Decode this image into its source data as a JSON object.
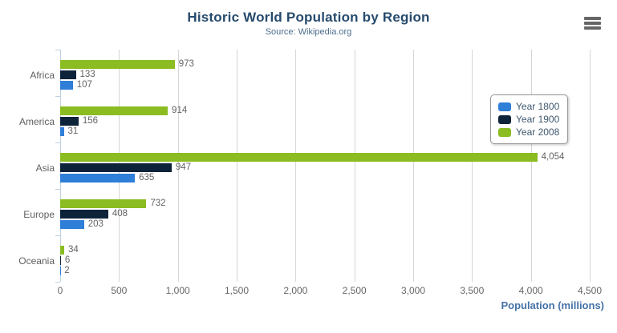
{
  "header": {
    "title": "Historic World Population by Region",
    "subtitle": "Source: Wikipedia.org"
  },
  "context_menu_icon": "hamburger-menu-icon",
  "colors": {
    "title": "#274b6d",
    "subtitle": "#4d6d8c",
    "axis_title": "#4572a7",
    "axis_line": "#c0d0e0",
    "gridline": "#d6d6d6",
    "labels": "#606060",
    "series_year_1800": "#2f7ed8",
    "series_year_1900": "#0d233a",
    "series_year_2008": "#8bbc21"
  },
  "legend": {
    "position": "right",
    "items": [
      {
        "label": "Year 1800",
        "color": "#2f7ed8"
      },
      {
        "label": "Year 1900",
        "color": "#0d233a"
      },
      {
        "label": "Year 2008",
        "color": "#8bbc21"
      }
    ]
  },
  "chart_data": {
    "type": "bar",
    "title": "Historic World Population by Region",
    "subtitle": "Source: Wikipedia.org",
    "categories": [
      "Africa",
      "America",
      "Asia",
      "Europe",
      "Oceania"
    ],
    "series": [
      {
        "name": "Year 1800",
        "color": "#2f7ed8",
        "values": [
          107,
          31,
          635,
          203,
          2
        ]
      },
      {
        "name": "Year 1900",
        "color": "#0d233a",
        "values": [
          133,
          156,
          947,
          408,
          6
        ]
      },
      {
        "name": "Year 2008",
        "color": "#8bbc21",
        "values": [
          973,
          914,
          4054,
          732,
          34
        ]
      }
    ],
    "xlabel": "Population (millions)",
    "ylabel": "",
    "xlim": [
      0,
      4500
    ],
    "xticks": [
      0,
      500,
      1000,
      1500,
      2000,
      2500,
      3000,
      3500,
      4000,
      4500
    ],
    "grid": true,
    "legend_position": "right",
    "bar_order_top_to_bottom": [
      "Year 2008",
      "Year 1900",
      "Year 1800"
    ],
    "value_labels": true,
    "number_format": "thousands-comma"
  }
}
